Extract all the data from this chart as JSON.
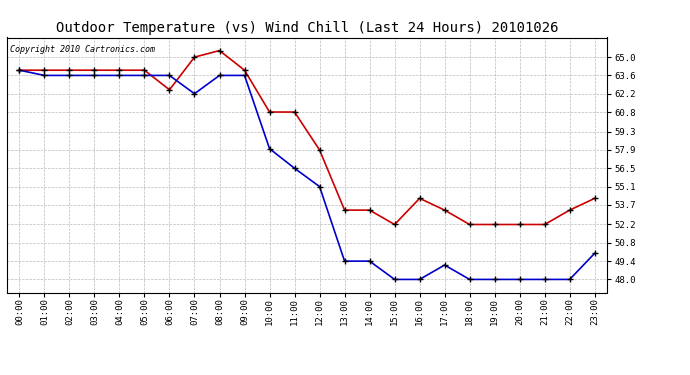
{
  "title": "Outdoor Temperature (vs) Wind Chill (Last 24 Hours) 20101026",
  "copyright_text": "Copyright 2010 Cartronics.com",
  "x_labels": [
    "00:00",
    "01:00",
    "02:00",
    "03:00",
    "04:00",
    "05:00",
    "06:00",
    "07:00",
    "08:00",
    "09:00",
    "10:00",
    "11:00",
    "12:00",
    "13:00",
    "14:00",
    "15:00",
    "16:00",
    "17:00",
    "18:00",
    "19:00",
    "20:00",
    "21:00",
    "22:00",
    "23:00"
  ],
  "temp_red": [
    64.0,
    64.0,
    64.0,
    64.0,
    64.0,
    64.0,
    62.5,
    65.0,
    65.5,
    64.0,
    60.8,
    60.8,
    57.9,
    53.3,
    53.3,
    52.2,
    54.2,
    53.3,
    52.2,
    52.2,
    52.2,
    52.2,
    53.3,
    54.2
  ],
  "wind_chill_blue": [
    64.0,
    63.6,
    63.6,
    63.6,
    63.6,
    63.6,
    63.6,
    62.2,
    63.6,
    63.6,
    58.0,
    56.5,
    55.1,
    49.4,
    49.4,
    48.0,
    48.0,
    49.1,
    48.0,
    48.0,
    48.0,
    48.0,
    48.0,
    50.0
  ],
  "ylim_min": 47.0,
  "ylim_max": 66.5,
  "yticks": [
    48.0,
    49.4,
    50.8,
    52.2,
    53.7,
    55.1,
    56.5,
    57.9,
    59.3,
    60.8,
    62.2,
    63.6,
    65.0
  ],
  "line_color_red": "#cc0000",
  "line_color_blue": "#0000cc",
  "marker_color": "#000000",
  "bg_color": "#ffffff",
  "grid_color": "#bbbbbb",
  "title_fontsize": 10,
  "copyright_fontsize": 6,
  "tick_fontsize": 6.5
}
